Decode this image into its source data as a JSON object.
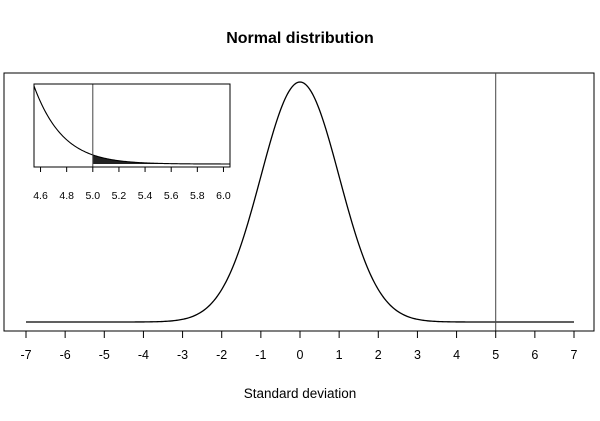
{
  "chart_data": {
    "type": "line",
    "title": "Normal distribution",
    "xlabel": "Standard deviation",
    "ylabel": "",
    "function": "standard normal density",
    "xlim": [
      -7,
      7
    ],
    "x_ticks": [
      -7,
      -6,
      -5,
      -4,
      -3,
      -2,
      -1,
      0,
      1,
      2,
      3,
      4,
      5,
      6,
      7
    ],
    "y_axis_shown": false,
    "vertical_line_x": 5,
    "grid": false,
    "inset": {
      "type": "line",
      "placement": "top-left",
      "xlim": [
        4.55,
        6.05
      ],
      "x_ticks": [
        4.6,
        4.8,
        5.0,
        5.2,
        5.4,
        5.6,
        5.8,
        6.0
      ],
      "x_tick_labels": [
        "4.6",
        "4.8",
        "5.0",
        "5.2",
        "5.4",
        "5.6",
        "5.8",
        "6.0"
      ],
      "vertical_line_x": 5.0,
      "shaded_region": [
        5.0,
        6.05
      ],
      "shade_color": "#222222"
    }
  }
}
